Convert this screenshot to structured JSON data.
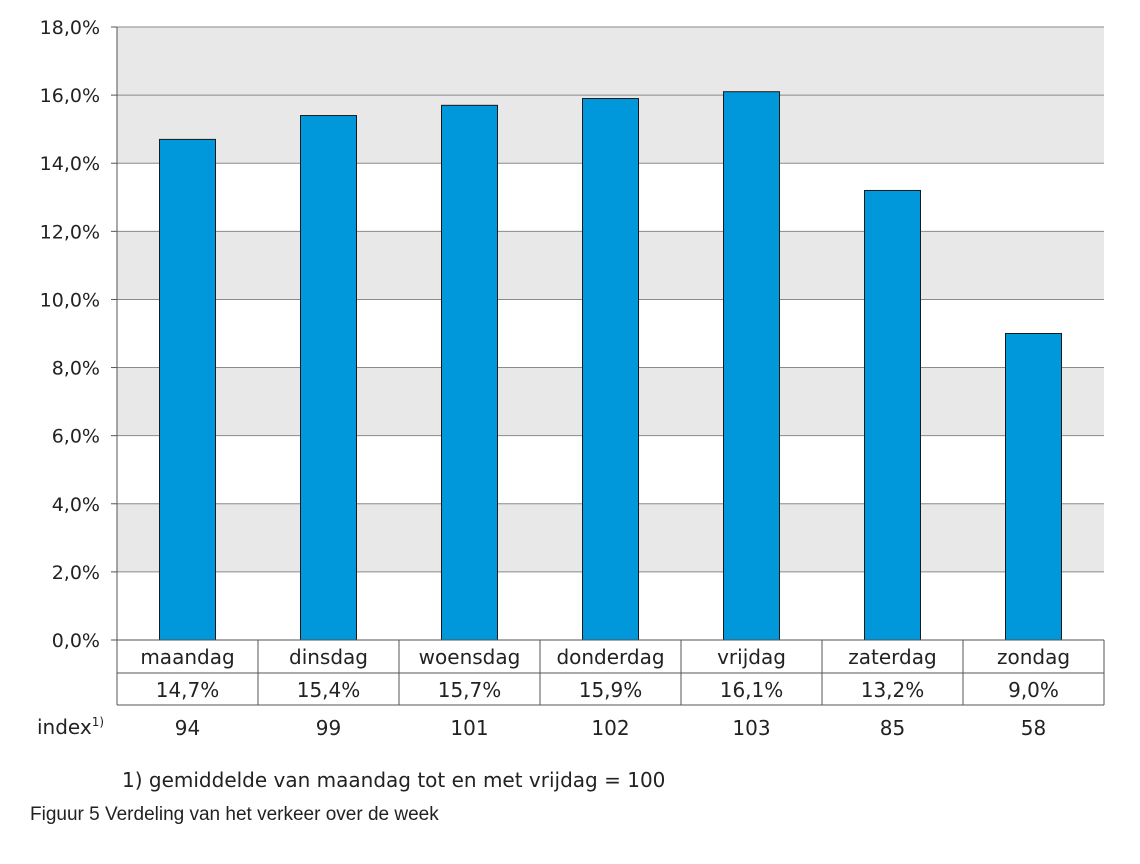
{
  "chart_data": {
    "type": "bar",
    "categories": [
      "maandag",
      "dinsdag",
      "woensdag",
      "donderdag",
      "vrijdag",
      "zaterdag",
      "zondag"
    ],
    "values": [
      14.7,
      15.4,
      15.7,
      15.9,
      16.1,
      13.2,
      9.0
    ],
    "value_labels": [
      "14,7%",
      "15,4%",
      "15,7%",
      "15,9%",
      "16,1%",
      "13,2%",
      "9,0%"
    ],
    "index_label": "index",
    "index_superscript": "1)",
    "index_values": [
      "94",
      "99",
      "101",
      "102",
      "103",
      "85",
      "58"
    ],
    "yticks": [
      "0,0%",
      "2,0%",
      "4,0%",
      "6,0%",
      "8,0%",
      "10,0%",
      "12,0%",
      "14,0%",
      "16,0%",
      "18,0%"
    ],
    "ylim": [
      0,
      18
    ],
    "bar_color": "#0097db",
    "band_color": "#e8e8e8",
    "grid": true
  },
  "footnote": "1) gemiddelde van maandag tot en met vrijdag = 100",
  "caption": "Figuur 5 Verdeling van het verkeer over de week"
}
